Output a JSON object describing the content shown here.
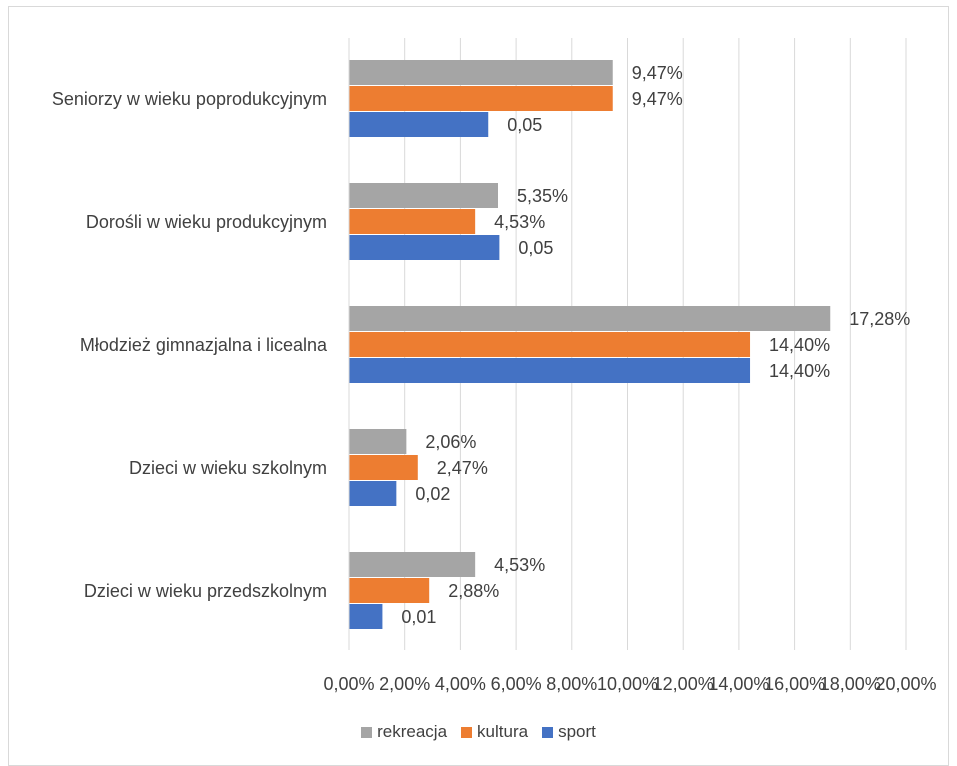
{
  "chart_data": {
    "type": "bar",
    "orientation": "horizontal",
    "categories": [
      "Seniorzy w wieku poprodukcyjnym",
      "Dorośli w wieku produkcyjnym",
      "Młodzież gimnazjalna i licealna",
      "Dzieci w wieku szkolnym",
      "Dzieci w wieku przedszkolnym"
    ],
    "series": [
      {
        "name": "rekreacja",
        "color": "#a5a5a5",
        "values": [
          0.0947,
          0.0535,
          0.1728,
          0.0206,
          0.0453
        ],
        "labels": [
          "9,47%",
          "5,35%",
          "17,28%",
          "2,06%",
          "4,53%"
        ]
      },
      {
        "name": "kultura",
        "color": "#ed7d31",
        "values": [
          0.0947,
          0.0453,
          0.144,
          0.0247,
          0.0288
        ],
        "labels": [
          "9,47%",
          "4,53%",
          "14,40%",
          "2,47%",
          "2,88%"
        ]
      },
      {
        "name": "sport",
        "color": "#4472c4",
        "values": [
          0.05,
          0.054,
          0.144,
          0.017,
          0.012
        ],
        "labels": [
          "0,05",
          "0,05",
          "14,40%",
          "0,02",
          "0,01"
        ]
      }
    ],
    "xlim": [
      0,
      0.2
    ],
    "xticks": [
      "0,00%",
      "2,00%",
      "4,00%",
      "6,00%",
      "8,00%",
      "10,00%",
      "12,00%",
      "14,00%",
      "16,00%",
      "18,00%",
      "20,00%"
    ],
    "grid": true,
    "legend_position": "bottom",
    "title": "",
    "xlabel": "",
    "ylabel": ""
  }
}
